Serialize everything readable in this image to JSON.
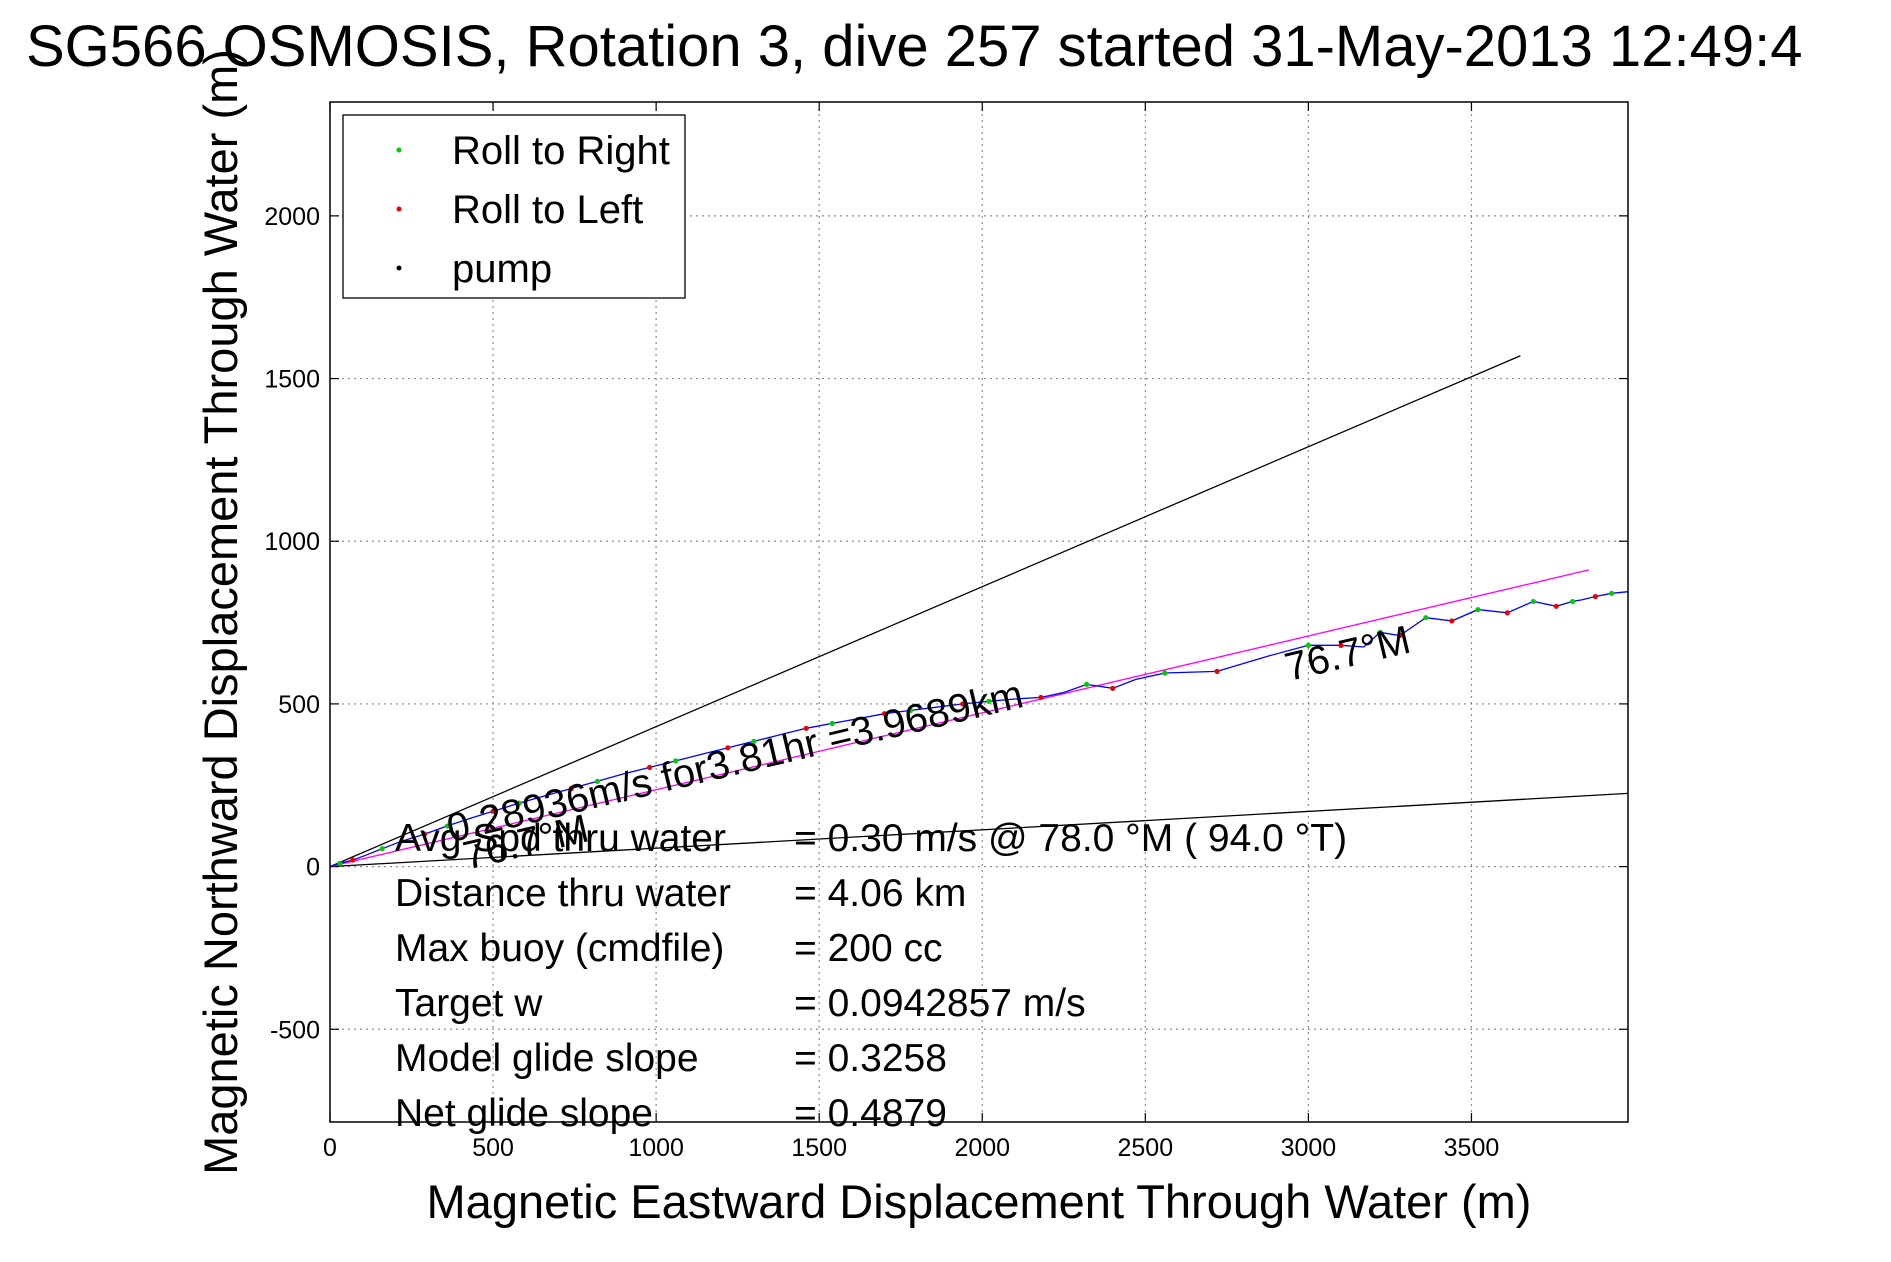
{
  "chart_data": {
    "type": "line",
    "title": "SG566 OSMOSIS, Rotation 3, dive 257 started 31-May-2013 12:49:4",
    "xlabel": "Magnetic Eastward Displacement Through Water (m)",
    "ylabel": "Magnetic Northward Displacement Through Water (m)",
    "xlim": [
      0,
      3980
    ],
    "ylim": [
      -785,
      2350
    ],
    "grid": true,
    "legend_position": "top-left",
    "x_ticks": [
      0,
      500,
      1000,
      1500,
      2000,
      2500,
      3000,
      3500
    ],
    "y_ticks": [
      -500,
      0,
      500,
      1000,
      1500,
      2000
    ],
    "legend": [
      {
        "label": "Roll to Right",
        "color": "#00cc00"
      },
      {
        "label": "Roll to Left",
        "color": "#ee0000"
      },
      {
        "label": "pump",
        "color": "#000000"
      }
    ],
    "track": {
      "color": "#0000ff",
      "x": [
        0,
        30,
        70,
        110,
        160,
        220,
        290,
        360,
        430,
        500,
        580,
        660,
        740,
        820,
        900,
        980,
        1060,
        1140,
        1220,
        1300,
        1380,
        1460,
        1540,
        1620,
        1700,
        1780,
        1860,
        1940,
        2020,
        2100,
        2180,
        2250,
        2320,
        2400,
        2470,
        2560,
        2720,
        2870,
        3000,
        3100,
        3170,
        3220,
        3280,
        3360,
        3440,
        3520,
        3610,
        3690,
        3760,
        3810,
        3840,
        3880,
        3930,
        3980
      ],
      "y": [
        0,
        10,
        20,
        35,
        55,
        78,
        100,
        125,
        148,
        170,
        195,
        218,
        240,
        262,
        285,
        305,
        325,
        345,
        365,
        385,
        405,
        425,
        440,
        455,
        470,
        480,
        490,
        500,
        508,
        515,
        520,
        535,
        560,
        548,
        575,
        595,
        600,
        645,
        680,
        680,
        675,
        720,
        710,
        765,
        755,
        790,
        780,
        815,
        800,
        815,
        820,
        830,
        840,
        845
      ],
      "roll_right_x": [
        30,
        160,
        360,
        580,
        820,
        1060,
        1300,
        1540,
        1780,
        2020,
        2320,
        2560,
        3000,
        3220,
        3360,
        3520,
        3690,
        3810,
        3930
      ],
      "roll_right_y": [
        10,
        55,
        125,
        195,
        262,
        325,
        385,
        440,
        480,
        508,
        560,
        595,
        680,
        720,
        765,
        790,
        815,
        815,
        840
      ],
      "roll_left_x": [
        70,
        290,
        500,
        740,
        980,
        1220,
        1460,
        1700,
        1940,
        2180,
        2400,
        2720,
        3100,
        3280,
        3440,
        3610,
        3760,
        3880
      ],
      "roll_left_y": [
        20,
        100,
        170,
        240,
        305,
        365,
        425,
        470,
        500,
        520,
        548,
        600,
        680,
        710,
        755,
        780,
        800,
        830
      ]
    },
    "reference_lines": [
      {
        "name": "",
        "color": "#000000",
        "x": [
          0,
          3650
        ],
        "y": [
          0,
          1570
        ]
      },
      {
        "name": "",
        "color": "#000000",
        "x": [
          0,
          3980
        ],
        "y": [
          0,
          225
        ]
      },
      {
        "name": "",
        "color": "#ff00ff",
        "x": [
          0,
          3860
        ],
        "y": [
          0,
          912
        ]
      }
    ],
    "annotations": [
      {
        "text": "0.28936m/s for3.81hr =3.9689km",
        "x": 370,
        "y": 75,
        "angle_deg": -13.3
      },
      {
        "text": "76.7°M",
        "x": 420,
        "y": -10,
        "angle_deg": -13.3
      },
      {
        "text": "76.7°M",
        "x": 2940,
        "y": 570,
        "angle_deg": -13.3
      }
    ]
  },
  "stats": [
    {
      "label": "Avg Spd thru water",
      "value": "=  0.30 m/s @  78.0 °M ( 94.0 °T)"
    },
    {
      "label": "Distance thru water",
      "value": "=  4.06 km"
    },
    {
      "label": "Max buoy (cmdfile)",
      "value": "= 200 cc"
    },
    {
      "label": "Target w",
      "value": "= 0.0942857 m/s"
    },
    {
      "label": "Model glide slope",
      "value": "= 0.3258"
    },
    {
      "label": "Net glide slope",
      "value": "= 0.4879"
    }
  ]
}
